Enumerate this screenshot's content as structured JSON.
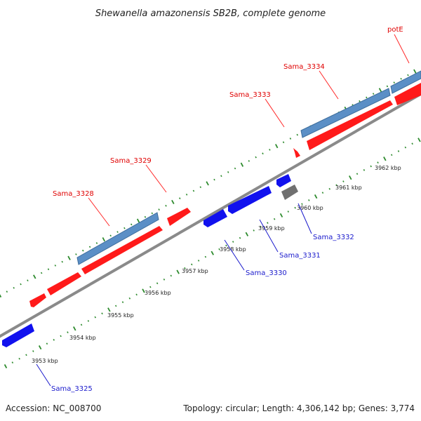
{
  "title": "Shewanella amazonensis SB2B, complete genome",
  "footer": {
    "accession": "Accession: NC_008700",
    "summary": "Topology: circular; Length: 4,306,142 bp; Genes: 3,774"
  },
  "colors": {
    "backbone": "#8a8a8a",
    "dots": "#2e8b2e",
    "forward_gene": "#ff1a1a",
    "forward_cds": "#5b8fc6",
    "reverse_gene": "#1111ee",
    "other_feature": "#707070",
    "label_forward": "#e00000",
    "label_reverse": "#1a1acc"
  },
  "ticks": [
    {
      "label": "3953 kbp"
    },
    {
      "label": "3954 kbp"
    },
    {
      "label": "3955 kbp"
    },
    {
      "label": "3956 kbp"
    },
    {
      "label": "3957 kbp"
    },
    {
      "label": "3958 kbp"
    },
    {
      "label": "3959 kbp"
    },
    {
      "label": "3960 kbp"
    },
    {
      "label": "3961 kbp"
    },
    {
      "label": "3962 kbp"
    }
  ],
  "gene_labels": {
    "sama_3325": "Sama_3325",
    "sama_3328": "Sama_3328",
    "sama_3329": "Sama_3329",
    "sama_3330": "Sama_3330",
    "sama_3331": "Sama_3331",
    "sama_3332": "Sama_3332",
    "sama_3333": "Sama_3333",
    "sama_3334": "Sama_3334",
    "pote": "potE"
  }
}
